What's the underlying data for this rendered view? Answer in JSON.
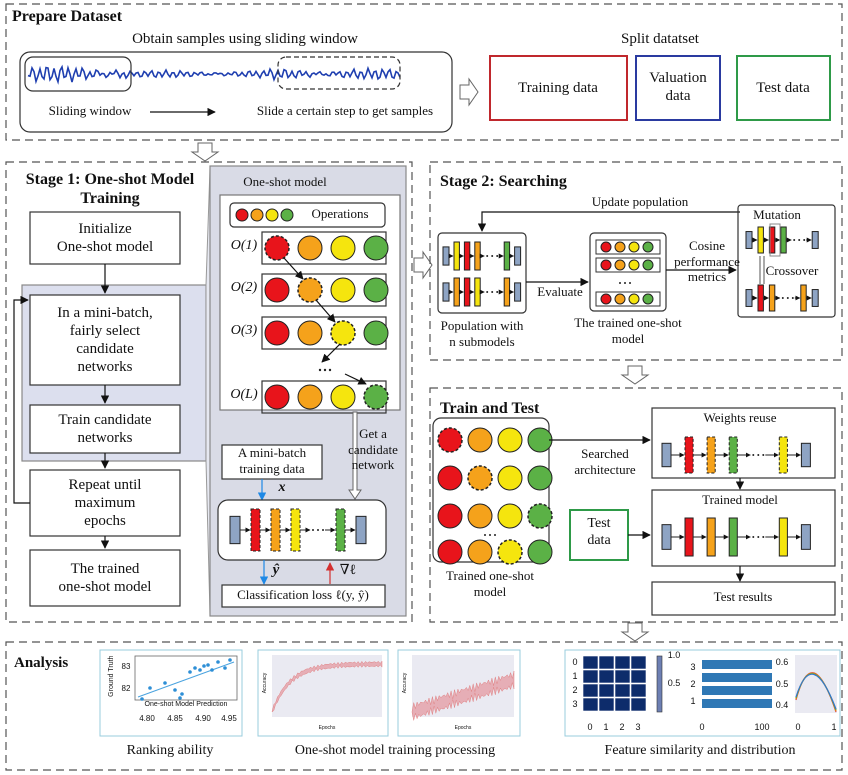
{
  "prepare": {
    "title": "Prepare Dataset",
    "sampling_title": "Obtain samples using sliding window",
    "sliding_window": "Sliding window",
    "slide_step": "Slide a certain step to get samples",
    "split_title": "Split datatset",
    "splits": [
      "Training data",
      [
        "Valuation",
        "data"
      ],
      "Test data"
    ]
  },
  "stage1": {
    "title": [
      "Stage 1: One-shot Model",
      "Training"
    ],
    "steps": [
      [
        "Initialize",
        "One-shot model"
      ],
      [
        "In a mini-batch,",
        "fairly select",
        "candidate",
        "networks"
      ],
      [
        "Train candidate",
        "networks"
      ],
      [
        "Repeat until",
        "maximum",
        "epochs"
      ],
      [
        "The trained",
        "one-shot model"
      ]
    ],
    "oneshot": {
      "title": "One-shot model",
      "operations": "Operations",
      "layers": [
        "O(1)",
        "O(2)",
        "O(3)",
        "O(L)"
      ]
    },
    "minibatch": [
      "A mini-batch",
      "training data"
    ],
    "get_candidate": [
      "Get a",
      "candidate",
      "network"
    ],
    "x": "x",
    "yhat": "ŷ",
    "grad": "∇ℓ",
    "loss": "Classification loss  ℓ(y, ŷ)"
  },
  "stage2": {
    "title": "Stage 2: Searching",
    "update": "Update population",
    "evaluate": "Evaluate",
    "population_caption": [
      "Population with",
      "n submodels"
    ],
    "trained_caption": [
      "The trained one-shot",
      "model"
    ],
    "cosine": [
      "Cosine",
      "performance",
      "metrics"
    ],
    "mutation": "Mutation",
    "crossover": "Crossover"
  },
  "train_test": {
    "title": "Train and Test",
    "trained_caption": [
      "Trained one-shot",
      "model"
    ],
    "searched": [
      "Searched",
      "architecture"
    ],
    "weights_reuse": "Weights reuse",
    "trained_model": "Trained model",
    "test_data": [
      "Test",
      "data"
    ],
    "test_results": "Test results"
  },
  "analysis": {
    "title": "Analysis",
    "captions": [
      "Ranking ability",
      "One-shot model training processing",
      "Feature similarity and distribution"
    ],
    "scatter": {
      "ylabel": "Ground Truth",
      "xlabel": "One-shot Model Prediction",
      "yticks": [
        "83",
        "82"
      ],
      "xticks": [
        "4.80",
        "4.85",
        "4.90",
        "4.95"
      ]
    },
    "training": [
      {
        "ylabel": "Accuracy",
        "xlabel": "Epochs"
      },
      {
        "ylabel": "Accuracy",
        "xlabel": "Epochs"
      }
    ],
    "heatmap": {
      "ticks": [
        "0",
        "1",
        "2",
        "3"
      ],
      "colorbar_ticks": [
        "1.0",
        "0.5"
      ]
    },
    "bars": {
      "yticks": [
        "3",
        "2",
        "1"
      ],
      "xticks": [
        "0",
        "100"
      ]
    },
    "curves": {
      "yticks": [
        "0.6",
        "0.5",
        "0.4"
      ],
      "xticks": [
        "0",
        "1"
      ]
    }
  }
}
